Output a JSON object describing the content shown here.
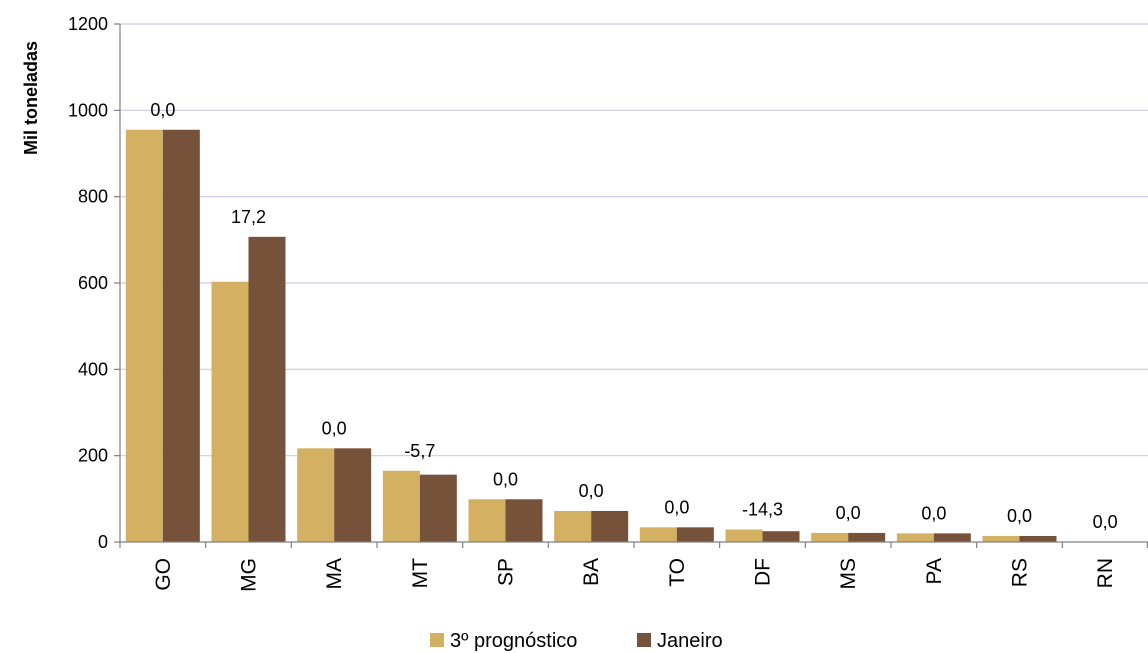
{
  "chart_data": {
    "type": "bar",
    "ylabel": "Mil  toneladas",
    "ylim": [
      0,
      1200
    ],
    "yticks": [
      0,
      200,
      400,
      600,
      800,
      1000,
      1200
    ],
    "grid": true,
    "legend_position": "bottom",
    "categories": [
      "GO",
      "MG",
      "MA",
      "MT",
      "SP",
      "BA",
      "TO",
      "DF",
      "MS",
      "PA",
      "RS",
      "RN"
    ],
    "series": [
      {
        "name": "3º prognóstico",
        "color": "#D4B062",
        "values": [
          955,
          603,
          217,
          165,
          99,
          72,
          34,
          29,
          21,
          20,
          14,
          0
        ]
      },
      {
        "name": "Janeiro",
        "color": "#77523A",
        "values": [
          955,
          707,
          217,
          156,
          99,
          72,
          34,
          25,
          21,
          20,
          14,
          0
        ]
      }
    ],
    "data_labels": [
      "0,0",
      "17,2",
      "0,0",
      "-5,7",
      "0,0",
      "0,0",
      "0,0",
      "-14,3",
      "0,0",
      "0,0",
      "0,0",
      "0,0"
    ],
    "colors": {
      "grid": "#C9C9F0",
      "axis": "#808080"
    }
  }
}
